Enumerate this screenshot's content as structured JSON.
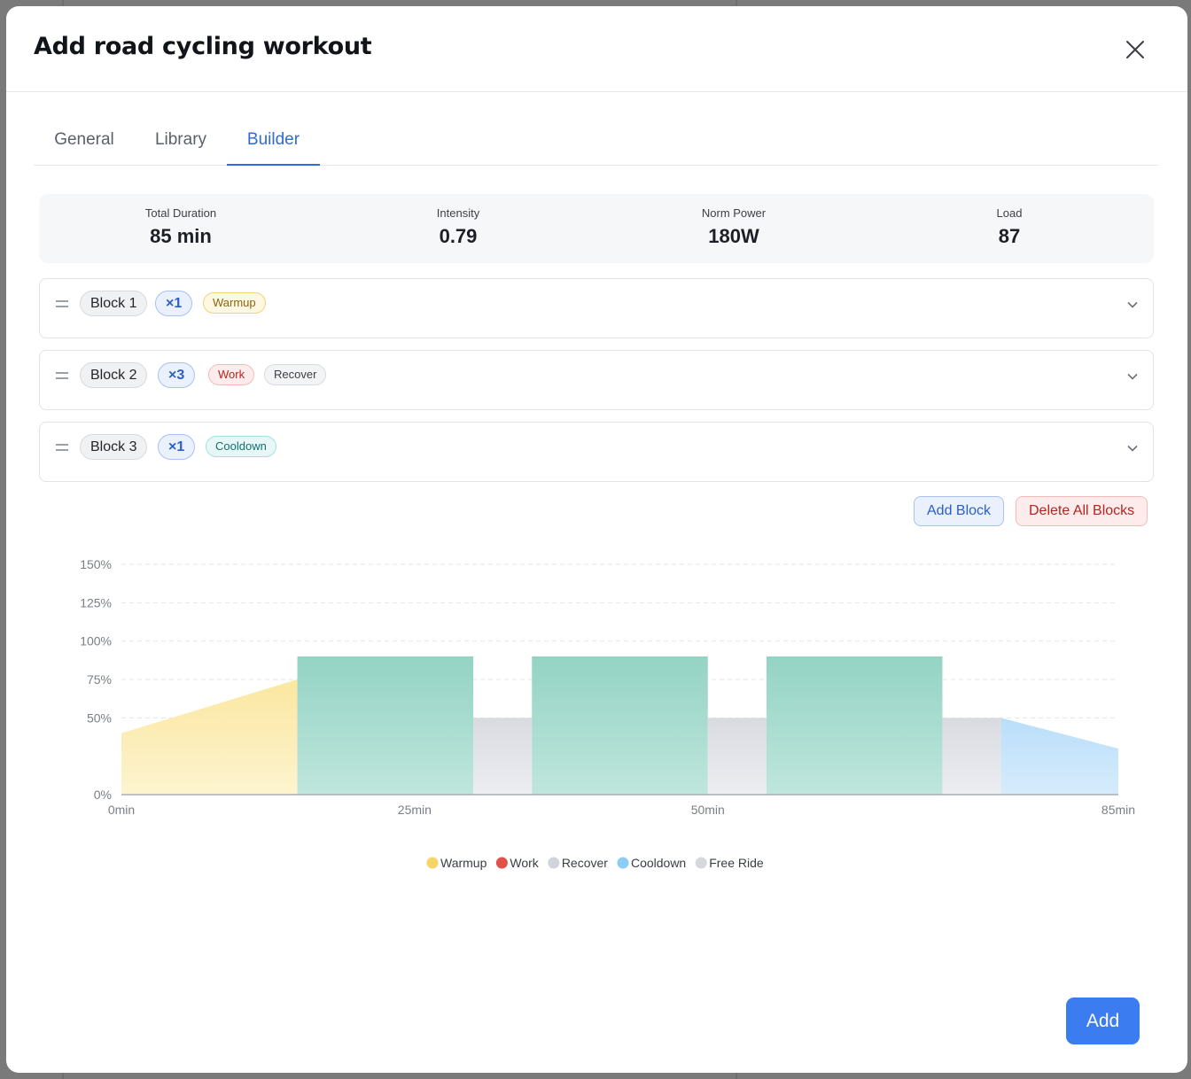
{
  "modal": {
    "title": "Add road cycling workout"
  },
  "tabs": [
    {
      "label": "General",
      "active": false
    },
    {
      "label": "Library",
      "active": false
    },
    {
      "label": "Builder",
      "active": true
    }
  ],
  "stats": [
    {
      "label": "Total Duration",
      "value": "85 min"
    },
    {
      "label": "Intensity",
      "value": "0.79"
    },
    {
      "label": "Norm Power",
      "value": "180W"
    },
    {
      "label": "Load",
      "value": "87"
    }
  ],
  "blocks": [
    {
      "name": "Block 1",
      "repeat": "×1",
      "tags": [
        "Warmup"
      ]
    },
    {
      "name": "Block 2",
      "repeat": "×3",
      "tags": [
        "Work",
        "Recover"
      ]
    },
    {
      "name": "Block 3",
      "repeat": "×1",
      "tags": [
        "Cooldown"
      ]
    }
  ],
  "actions": {
    "add_block": "Add Block",
    "delete_all": "Delete All Blocks"
  },
  "footer": {
    "add_label": "Add"
  },
  "colors": {
    "accent": "#3b7cf0",
    "warmup": "#f5d565",
    "work": "#e0524a",
    "recover": "#d1d5db",
    "cooldown": "#8ecdf3",
    "free_ride": "#d6d8dc",
    "work_fill": "#8fd0c0"
  },
  "chart_data": {
    "type": "area",
    "x_unit": "min",
    "y_unit": "%",
    "xlim": [
      0,
      85
    ],
    "ylim": [
      0,
      150
    ],
    "x_ticks": [
      {
        "value": 0,
        "label": "0min"
      },
      {
        "value": 25,
        "label": "25min"
      },
      {
        "value": 50,
        "label": "50min"
      },
      {
        "value": 85,
        "label": "85min"
      }
    ],
    "y_ticks": [
      {
        "value": 0,
        "label": "0%"
      },
      {
        "value": 50,
        "label": "50%"
      },
      {
        "value": 75,
        "label": "75%"
      },
      {
        "value": 100,
        "label": "100%"
      },
      {
        "value": 125,
        "label": "125%"
      },
      {
        "value": 150,
        "label": "150%"
      }
    ],
    "grid": true,
    "legend_position": "bottom-center",
    "legend": [
      {
        "name": "Warmup",
        "color": "#f5d565"
      },
      {
        "name": "Work",
        "color": "#e0524a"
      },
      {
        "name": "Recover",
        "color": "#d1d5db"
      },
      {
        "name": "Cooldown",
        "color": "#8ecdf3"
      },
      {
        "name": "Free Ride",
        "color": "#d6d8dc"
      }
    ],
    "segments": [
      {
        "type": "Warmup",
        "start": 0,
        "end": 15,
        "from": 40,
        "to": 75
      },
      {
        "type": "Work",
        "start": 15,
        "end": 30,
        "from": 90,
        "to": 90
      },
      {
        "type": "Recover",
        "start": 30,
        "end": 35,
        "from": 50,
        "to": 50
      },
      {
        "type": "Work",
        "start": 35,
        "end": 50,
        "from": 90,
        "to": 90
      },
      {
        "type": "Recover",
        "start": 50,
        "end": 55,
        "from": 50,
        "to": 50
      },
      {
        "type": "Work",
        "start": 55,
        "end": 70,
        "from": 90,
        "to": 90
      },
      {
        "type": "Recover",
        "start": 70,
        "end": 75,
        "from": 50,
        "to": 50
      },
      {
        "type": "Cooldown",
        "start": 75,
        "end": 85,
        "from": 50,
        "to": 30
      }
    ]
  }
}
